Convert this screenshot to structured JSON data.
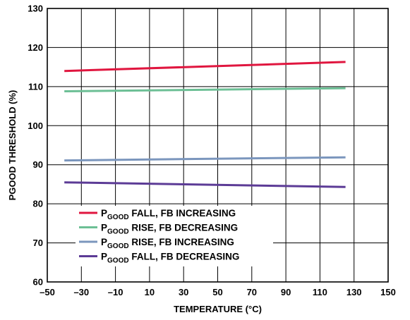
{
  "chart_data": {
    "type": "line",
    "title": "",
    "xlabel": "TEMPERATURE (°C)",
    "ylabel": "PGOOD THRESHOLD (%)",
    "xlim": [
      -50,
      150
    ],
    "ylim": [
      60,
      130
    ],
    "x_ticks": [
      -50,
      -30,
      -10,
      10,
      30,
      50,
      70,
      90,
      110,
      130,
      150
    ],
    "x_tick_labels": [
      "–50",
      "–30",
      "–10",
      "10",
      "30",
      "50",
      "70",
      "90",
      "110",
      "130",
      "150"
    ],
    "y_ticks": [
      60,
      70,
      80,
      90,
      100,
      110,
      120,
      130
    ],
    "y_tick_labels": [
      "60",
      "70",
      "80",
      "90",
      "100",
      "110",
      "120",
      "130"
    ],
    "grid": true,
    "legend_position": "bottom-left",
    "series": [
      {
        "name_main": "P",
        "name_sub": "GOOD",
        "name_rest": " FALL, FB INCREASING",
        "color": "#e0163f",
        "x": [
          -40,
          125
        ],
        "y": [
          114.0,
          116.3
        ]
      },
      {
        "name_main": "P",
        "name_sub": "GOOD",
        "name_rest": " RISE, FB DECREASING",
        "color": "#6cbf95",
        "x": [
          -40,
          125
        ],
        "y": [
          108.8,
          109.6
        ]
      },
      {
        "name_main": "P",
        "name_sub": "GOOD",
        "name_rest": " RISE, FB INCREASING",
        "color": "#7b96bd",
        "x": [
          -40,
          125
        ],
        "y": [
          91.1,
          91.9
        ]
      },
      {
        "name_main": "P",
        "name_sub": "GOOD",
        "name_rest": " FALL, FB DECREASING",
        "color": "#5c3b96",
        "x": [
          -40,
          125
        ],
        "y": [
          85.5,
          84.3
        ]
      }
    ]
  }
}
